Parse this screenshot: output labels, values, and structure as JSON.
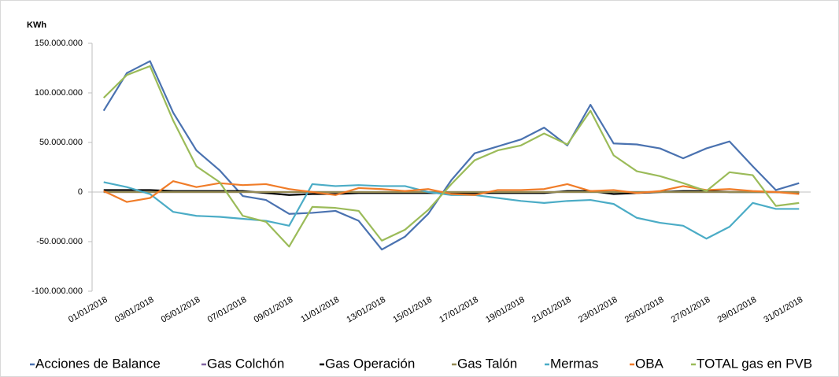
{
  "chart_data": {
    "type": "line",
    "y_label": "KWh",
    "categories": [
      "01/01/2018",
      null,
      "03/01/2018",
      null,
      "05/01/2018",
      null,
      "07/01/2018",
      null,
      "09/01/2018",
      null,
      "11/01/2018",
      null,
      "13/01/2018",
      null,
      "15/01/2018",
      null,
      "17/01/2018",
      null,
      "19/01/2018",
      null,
      "21/01/2018",
      null,
      "23/01/2018",
      null,
      "25/01/2018",
      null,
      "27/01/2018",
      null,
      "29/01/2018",
      null,
      "31/01/2018"
    ],
    "ylim": [
      -100000000,
      150000000
    ],
    "yticks": [
      {
        "value": -100000000,
        "label": "-100.000.000"
      },
      {
        "value": -50000000,
        "label": "-50.000.000"
      },
      0,
      {
        "value": 50000000,
        "label": "50.000.000"
      },
      {
        "value": 100000000,
        "label": "100.000.000"
      },
      {
        "value": 150000000,
        "label": "150.000.000"
      }
    ],
    "grid": false,
    "series": [
      {
        "name": "Acciones de Balance",
        "color": "#4a72b0",
        "values": [
          82000000,
          120000000,
          132000000,
          80000000,
          42000000,
          22000000,
          -4000000,
          -8000000,
          -22000000,
          -21000000,
          -19000000,
          -29000000,
          -58000000,
          -45000000,
          -22000000,
          12000000,
          39000000,
          46000000,
          53000000,
          65000000,
          47000000,
          88000000,
          49000000,
          48000000,
          44000000,
          34000000,
          44000000,
          51000000,
          26000000,
          2000000,
          9000000
        ]
      },
      {
        "name": "Gas Colchón",
        "color": "#8064a2",
        "values": [
          0,
          0,
          0,
          0,
          0,
          0,
          0,
          0,
          0,
          0,
          0,
          0,
          0,
          0,
          0,
          0,
          0,
          0,
          0,
          0,
          0,
          0,
          0,
          0,
          0,
          0,
          0,
          0,
          0,
          0,
          0
        ]
      },
      {
        "name": "Gas Operación",
        "color": "#000000",
        "values": [
          2000000,
          2000000,
          2000000,
          1000000,
          1000000,
          1000000,
          1000000,
          -1000000,
          -3000000,
          -2000000,
          -2000000,
          -1000000,
          -1000000,
          -1000000,
          -1000000,
          -1000000,
          -1000000,
          -1000000,
          -1000000,
          -1000000,
          1000000,
          1000000,
          -2000000,
          -1000000,
          0,
          1000000,
          1000000,
          0,
          0,
          0,
          -1000000
        ]
      },
      {
        "name": "Gas Talón",
        "color": "#948a54",
        "values": [
          0,
          0,
          0,
          0,
          0,
          0,
          0,
          0,
          0,
          0,
          0,
          0,
          0,
          0,
          0,
          0,
          0,
          0,
          0,
          0,
          0,
          0,
          0,
          0,
          0,
          0,
          0,
          0,
          0,
          0,
          0
        ]
      },
      {
        "name": "Mermas",
        "color": "#4bacc6",
        "values": [
          10000000,
          5000000,
          -2000000,
          -20000000,
          -24000000,
          -25000000,
          -27000000,
          -29000000,
          -34000000,
          8000000,
          6000000,
          7000000,
          6000000,
          6000000,
          0,
          -3000000,
          -3000000,
          -6000000,
          -9000000,
          -11000000,
          -9000000,
          -8000000,
          -12000000,
          -26000000,
          -31000000,
          -34000000,
          -47000000,
          -35000000,
          -11000000,
          -17000000,
          -17000000
        ]
      },
      {
        "name": "OBA",
        "color": "#f07c28",
        "values": [
          1000000,
          -10000000,
          -6000000,
          11000000,
          5000000,
          9000000,
          7000000,
          8000000,
          3000000,
          0,
          -3000000,
          4000000,
          3000000,
          1000000,
          3000000,
          -2000000,
          -3000000,
          2000000,
          2000000,
          3000000,
          8000000,
          1000000,
          2000000,
          -1000000,
          1000000,
          6000000,
          2000000,
          3000000,
          1000000,
          0,
          -2000000
        ]
      },
      {
        "name": "TOTAL gas en PVB",
        "color": "#9bbb59",
        "values": [
          95000000,
          118000000,
          127000000,
          72000000,
          26000000,
          10000000,
          -24000000,
          -30000000,
          -55000000,
          -15000000,
          -16000000,
          -19000000,
          -49000000,
          -38000000,
          -18000000,
          8000000,
          32000000,
          42000000,
          47000000,
          59000000,
          48000000,
          82000000,
          37000000,
          21000000,
          16000000,
          9000000,
          1000000,
          20000000,
          17000000,
          -14000000,
          -11000000
        ]
      }
    ]
  }
}
